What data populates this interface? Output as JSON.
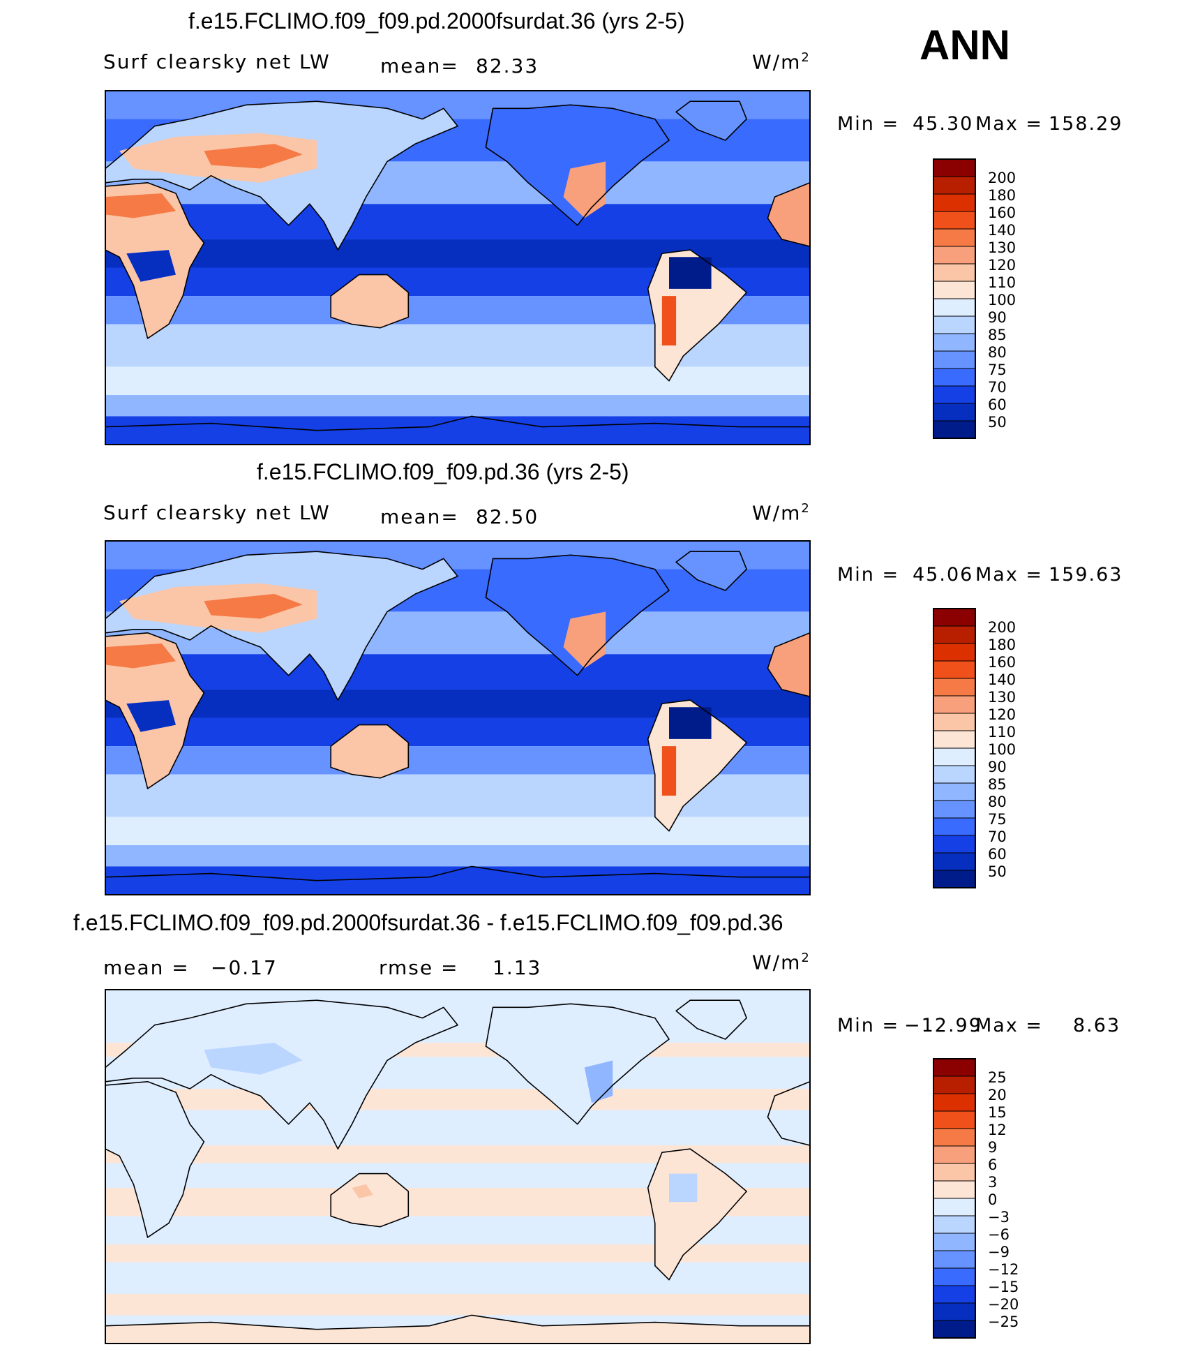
{
  "season": "ANN",
  "chart_data": [
    {
      "type": "heatmap",
      "title": "f.e15.FCLIMO.f09_f09.pd.2000fsurdat.36 (yrs 2-5)",
      "variable": "Surf clearsky net LW",
      "mean_label": "mean=",
      "mean": "82.33",
      "units_base": "W/m",
      "units_exp": "2",
      "min_label": "Min =",
      "min": "45.30",
      "max_label": "Max =",
      "max": "158.29",
      "colorbar": {
        "levels": [
          "200",
          "180",
          "160",
          "140",
          "130",
          "120",
          "110",
          "100",
          "90",
          "85",
          "80",
          "75",
          "70",
          "60",
          "50"
        ],
        "colors": [
          "#8b0000",
          "#b81f00",
          "#dc3000",
          "#f0501a",
          "#f57a45",
          "#f8a07c",
          "#fbc6a8",
          "#fde5d6",
          "#dfeeff",
          "#bad6ff",
          "#8fb6ff",
          "#6693ff",
          "#3a6bff",
          "#1440e6",
          "#062fc0",
          "#001b8a"
        ]
      }
    },
    {
      "type": "heatmap",
      "title": "f.e15.FCLIMO.f09_f09.pd.36 (yrs 2-5)",
      "variable": "Surf clearsky net LW",
      "mean_label": "mean=",
      "mean": "82.50",
      "units_base": "W/m",
      "units_exp": "2",
      "min_label": "Min =",
      "min": "45.06",
      "max_label": "Max =",
      "max": "159.63",
      "colorbar": {
        "levels": [
          "200",
          "180",
          "160",
          "140",
          "130",
          "120",
          "110",
          "100",
          "90",
          "85",
          "80",
          "75",
          "70",
          "60",
          "50"
        ],
        "colors": [
          "#8b0000",
          "#b81f00",
          "#dc3000",
          "#f0501a",
          "#f57a45",
          "#f8a07c",
          "#fbc6a8",
          "#fde5d6",
          "#dfeeff",
          "#bad6ff",
          "#8fb6ff",
          "#6693ff",
          "#3a6bff",
          "#1440e6",
          "#062fc0",
          "#001b8a"
        ]
      }
    },
    {
      "type": "heatmap",
      "title": "f.e15.FCLIMO.f09_f09.pd.2000fsurdat.36 - f.e15.FCLIMO.f09_f09.pd.36",
      "mean_label": "mean =",
      "mean": "−0.17",
      "rmse_label": "rmse =",
      "rmse": "1.13",
      "units_base": "W/m",
      "units_exp": "2",
      "min_label": "Min =",
      "min": "−12.99",
      "max_label": "Max =",
      "max": "8.63",
      "colorbar": {
        "levels": [
          "25",
          "20",
          "15",
          "12",
          "9",
          "6",
          "3",
          "0",
          "−3",
          "−6",
          "−9",
          "−12",
          "−15",
          "−20",
          "−25"
        ],
        "colors": [
          "#8b0000",
          "#b81f00",
          "#dc3000",
          "#f0501a",
          "#f57a45",
          "#f8a07c",
          "#fbc6a8",
          "#fde5d6",
          "#dfeeff",
          "#bad6ff",
          "#8fb6ff",
          "#6693ff",
          "#3a6bff",
          "#1440e6",
          "#062fc0",
          "#001b8a"
        ]
      }
    }
  ]
}
